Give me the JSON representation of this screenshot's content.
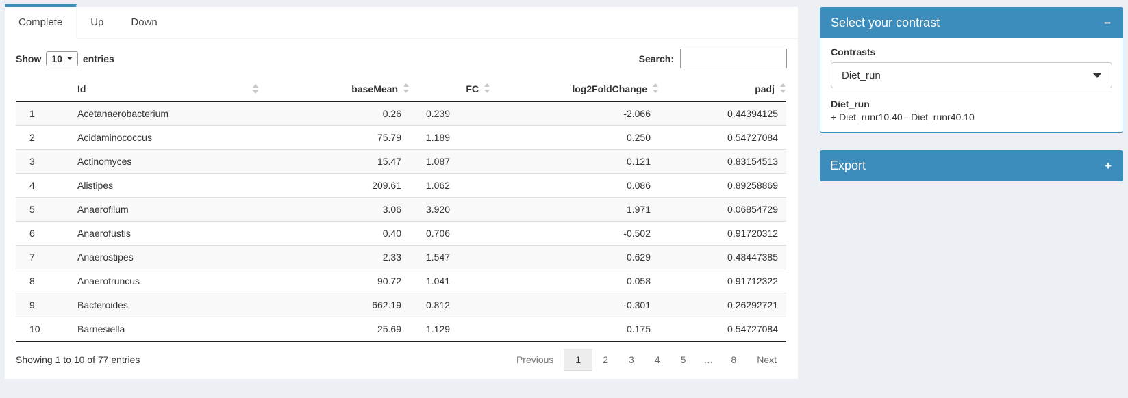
{
  "colors": {
    "primary": "#3c8dbc",
    "page_bg": "#ecf0f5"
  },
  "tabs": [
    {
      "label": "Complete",
      "active": true
    },
    {
      "label": "Up",
      "active": false
    },
    {
      "label": "Down",
      "active": false
    }
  ],
  "controls": {
    "show_label": "Show",
    "page_size": "10",
    "entries_label": "entries",
    "search_label": "Search:",
    "search_value": ""
  },
  "table": {
    "columns": [
      {
        "label": "Id"
      },
      {
        "label": "baseMean"
      },
      {
        "label": "FC"
      },
      {
        "label": "log2FoldChange"
      },
      {
        "label": "padj"
      }
    ],
    "rows": [
      {
        "n": "1",
        "id": "Acetanaerobacterium",
        "baseMean": "0.26",
        "FC": "0.239",
        "log2FoldChange": "-2.066",
        "padj": "0.44394125"
      },
      {
        "n": "2",
        "id": "Acidaminococcus",
        "baseMean": "75.79",
        "FC": "1.189",
        "log2FoldChange": "0.250",
        "padj": "0.54727084"
      },
      {
        "n": "3",
        "id": "Actinomyces",
        "baseMean": "15.47",
        "FC": "1.087",
        "log2FoldChange": "0.121",
        "padj": "0.83154513"
      },
      {
        "n": "4",
        "id": "Alistipes",
        "baseMean": "209.61",
        "FC": "1.062",
        "log2FoldChange": "0.086",
        "padj": "0.89258869"
      },
      {
        "n": "5",
        "id": "Anaerofilum",
        "baseMean": "3.06",
        "FC": "3.920",
        "log2FoldChange": "1.971",
        "padj": "0.06854729"
      },
      {
        "n": "6",
        "id": "Anaerofustis",
        "baseMean": "0.40",
        "FC": "0.706",
        "log2FoldChange": "-0.502",
        "padj": "0.91720312"
      },
      {
        "n": "7",
        "id": "Anaerostipes",
        "baseMean": "2.33",
        "FC": "1.547",
        "log2FoldChange": "0.629",
        "padj": "0.48447385"
      },
      {
        "n": "8",
        "id": "Anaerotruncus",
        "baseMean": "90.72",
        "FC": "1.041",
        "log2FoldChange": "0.058",
        "padj": "0.91712322"
      },
      {
        "n": "9",
        "id": "Bacteroides",
        "baseMean": "662.19",
        "FC": "0.812",
        "log2FoldChange": "-0.301",
        "padj": "0.26292721"
      },
      {
        "n": "10",
        "id": "Barnesiella",
        "baseMean": "25.69",
        "FC": "1.129",
        "log2FoldChange": "0.175",
        "padj": "0.54727084"
      }
    ]
  },
  "footer": {
    "info": "Showing 1 to 10 of 77 entries",
    "previous_label": "Previous",
    "next_label": "Next",
    "pages": [
      "1",
      "2",
      "3",
      "4",
      "5",
      "…",
      "8"
    ],
    "active_page": "1"
  },
  "contrast_box": {
    "title": "Select your contrast",
    "collapse_icon": "−",
    "contrasts_label": "Contrasts",
    "selected_contrast": "Diet_run",
    "detail_name": "Diet_run",
    "detail_formula": "+ Diet_runr10.40 - Diet_runr40.10"
  },
  "export_box": {
    "title": "Export",
    "expand_icon": "+"
  }
}
